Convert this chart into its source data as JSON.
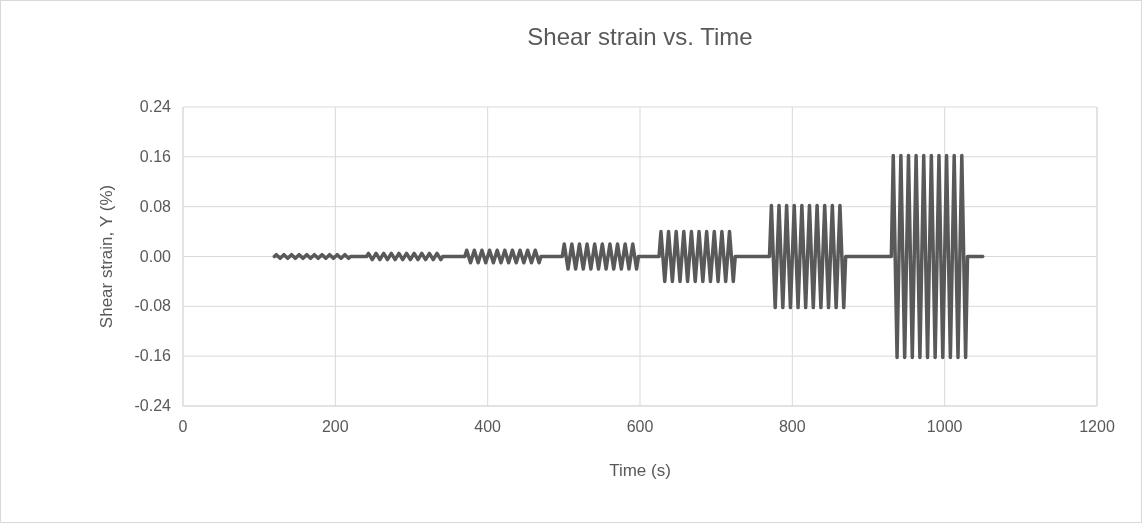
{
  "chart_data": {
    "type": "line",
    "title": "Shear strain vs. Time",
    "xlabel": "Time (s)",
    "ylabel": "Shear strain, Υ (%)",
    "xlim": [
      0,
      1200
    ],
    "xticks": [
      0,
      200,
      400,
      600,
      800,
      1000,
      1200
    ],
    "ylim": [
      -0.24,
      0.24
    ],
    "yticks": [
      -0.24,
      -0.16,
      -0.08,
      {
        "value": 0,
        "label": "0.00"
      },
      0.08,
      0.16,
      0.24
    ],
    "grid": true,
    "marker": "none",
    "line_style": "solid",
    "series": [
      {
        "color": "#595959",
        "x": [
          120,
          122.5,
          127.5,
          132.5,
          137.5,
          142.5,
          147.5,
          152.5,
          157.5,
          162.5,
          167.5,
          172.5,
          177.5,
          182.5,
          187.5,
          192.5,
          197.5,
          202.5,
          207.5,
          212.5,
          217.5,
          220,
          241,
          243.5,
          248.5,
          253.5,
          258.5,
          263.5,
          268.5,
          273.5,
          278.5,
          283.5,
          288.5,
          293.5,
          298.5,
          303.5,
          308.5,
          313.5,
          318.5,
          323.5,
          328.5,
          333.5,
          338.5,
          341,
          370,
          372.5,
          377.5,
          382.5,
          387.5,
          392.5,
          397.5,
          402.5,
          407.5,
          412.5,
          417.5,
          422.5,
          427.5,
          432.5,
          437.5,
          442.5,
          447.5,
          452.5,
          457.5,
          462.5,
          467.5,
          470,
          498,
          500.5,
          505.5,
          510.5,
          515.5,
          520.5,
          525.5,
          530.5,
          535.5,
          540.5,
          545.5,
          550.5,
          555.5,
          560.5,
          565.5,
          570.5,
          575.5,
          580.5,
          585.5,
          590.5,
          595.5,
          598,
          625,
          627.5,
          632.5,
          637.5,
          642.5,
          647.5,
          652.5,
          657.5,
          662.5,
          667.5,
          672.5,
          677.5,
          682.5,
          687.5,
          692.5,
          697.5,
          702.5,
          707.5,
          712.5,
          717.5,
          722.5,
          725,
          770,
          772.5,
          777.5,
          782.5,
          787.5,
          792.5,
          797.5,
          802.5,
          807.5,
          812.5,
          817.5,
          822.5,
          827.5,
          832.5,
          837.5,
          842.5,
          847.5,
          852.5,
          857.5,
          862.5,
          867.5,
          870,
          930,
          932.5,
          937.5,
          942.5,
          947.5,
          952.5,
          957.5,
          962.5,
          967.5,
          972.5,
          977.5,
          982.5,
          987.5,
          992.5,
          997.5,
          1002.5,
          1007.5,
          1012.5,
          1017.5,
          1022.5,
          1027.5,
          1030,
          1050
        ],
        "values": [
          0,
          0.003,
          -0.003,
          0.003,
          -0.003,
          0.003,
          -0.003,
          0.003,
          -0.003,
          0.003,
          -0.003,
          0.003,
          -0.003,
          0.003,
          -0.003,
          0.003,
          -0.003,
          0.003,
          -0.003,
          0.003,
          -0.003,
          0,
          0,
          0.005,
          -0.005,
          0.005,
          -0.005,
          0.005,
          -0.005,
          0.005,
          -0.005,
          0.005,
          -0.005,
          0.005,
          -0.005,
          0.005,
          -0.005,
          0.005,
          -0.005,
          0.005,
          -0.005,
          0.005,
          -0.005,
          0,
          0,
          0.01,
          -0.01,
          0.01,
          -0.01,
          0.01,
          -0.01,
          0.01,
          -0.01,
          0.01,
          -0.01,
          0.01,
          -0.01,
          0.01,
          -0.01,
          0.01,
          -0.01,
          0.01,
          -0.01,
          0.01,
          -0.01,
          0,
          0,
          0.02,
          -0.02,
          0.02,
          -0.02,
          0.02,
          -0.02,
          0.02,
          -0.02,
          0.02,
          -0.02,
          0.02,
          -0.02,
          0.02,
          -0.02,
          0.02,
          -0.02,
          0.02,
          -0.02,
          0.02,
          -0.02,
          0,
          0,
          0.04,
          -0.04,
          0.04,
          -0.04,
          0.04,
          -0.04,
          0.04,
          -0.04,
          0.04,
          -0.04,
          0.04,
          -0.04,
          0.04,
          -0.04,
          0.04,
          -0.04,
          0.04,
          -0.04,
          0.04,
          -0.04,
          0,
          0,
          0.082,
          -0.082,
          0.082,
          -0.082,
          0.082,
          -0.082,
          0.082,
          -0.082,
          0.082,
          -0.082,
          0.082,
          -0.082,
          0.082,
          -0.082,
          0.082,
          -0.082,
          0.082,
          -0.082,
          0.082,
          -0.082,
          0,
          0,
          0.162,
          -0.162,
          0.162,
          -0.162,
          0.162,
          -0.162,
          0.162,
          -0.162,
          0.162,
          -0.162,
          0.162,
          -0.162,
          0.162,
          -0.162,
          0.162,
          -0.162,
          0.162,
          -0.162,
          0.162,
          -0.162,
          0,
          0
        ]
      }
    ]
  }
}
